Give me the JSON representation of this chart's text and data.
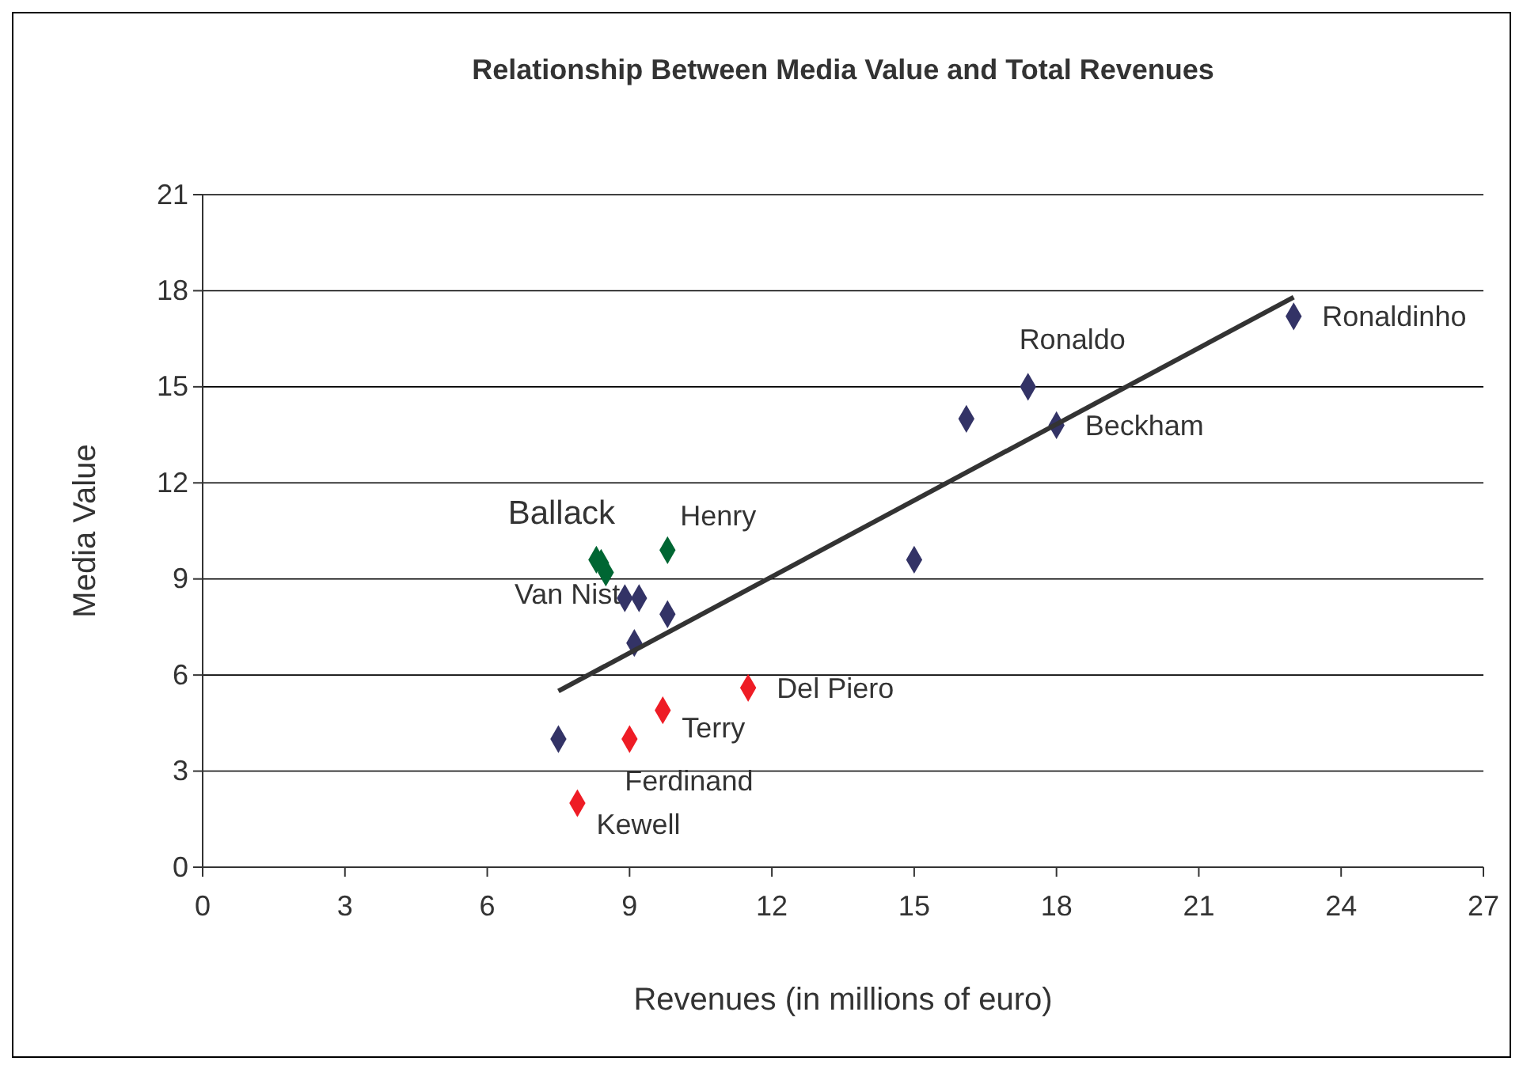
{
  "chart_data": {
    "type": "scatter",
    "title": "Relationship Between Media Value and Total Revenues",
    "xlabel": "Revenues (in millions of euro)",
    "ylabel": "Media Value",
    "xlim": [
      0,
      27
    ],
    "xticks": [
      0,
      3,
      6,
      9,
      12,
      15,
      18,
      21,
      24,
      27
    ],
    "ylim": [
      0,
      21
    ],
    "yticks": [
      0,
      3,
      6,
      9,
      12,
      15,
      18,
      21
    ],
    "grid": "y",
    "marker": "diamond",
    "series": [
      {
        "color": "#333366",
        "x": [
          23.0,
          17.4,
          16.1,
          18.0,
          15.0,
          8.9,
          9.2,
          9.8,
          9.1,
          7.5
        ],
        "values": [
          17.2,
          15.0,
          14.0,
          13.8,
          9.6,
          8.4,
          8.4,
          7.9,
          7.0,
          4.0
        ]
      },
      {
        "color": "#006633",
        "x": [
          8.3,
          8.4,
          8.5,
          9.8
        ],
        "values": [
          9.6,
          9.5,
          9.2,
          9.9
        ]
      },
      {
        "color": "#ee1c25",
        "x": [
          11.5,
          9.7,
          9.0,
          7.9
        ],
        "values": [
          5.6,
          4.9,
          4.0,
          2.0
        ]
      },
      {
        "type": "line",
        "color": "#333333",
        "marker": "none",
        "x": [
          7.5,
          23.0
        ],
        "values": [
          5.5,
          17.8
        ]
      }
    ],
    "annotations": [
      {
        "text": "Ronaldinho",
        "x": 23.0,
        "y": 17.2
      },
      {
        "text": "Ronaldo",
        "x": 17.4,
        "y": 15.0
      },
      {
        "text": "Beckham",
        "x": 18.0,
        "y": 13.8
      },
      {
        "text": "Ballack",
        "x": 8.3,
        "y": 9.6
      },
      {
        "text": "Henry",
        "x": 9.8,
        "y": 9.9
      },
      {
        "text": "Van Nist",
        "x": 8.9,
        "y": 8.4
      },
      {
        "text": "Del Piero",
        "x": 11.5,
        "y": 5.6
      },
      {
        "text": "Terry",
        "x": 9.7,
        "y": 4.9
      },
      {
        "text": "Ferdinand",
        "x": 9.0,
        "y": 4.0
      },
      {
        "text": "Kewell",
        "x": 7.9,
        "y": 2.0
      }
    ]
  }
}
